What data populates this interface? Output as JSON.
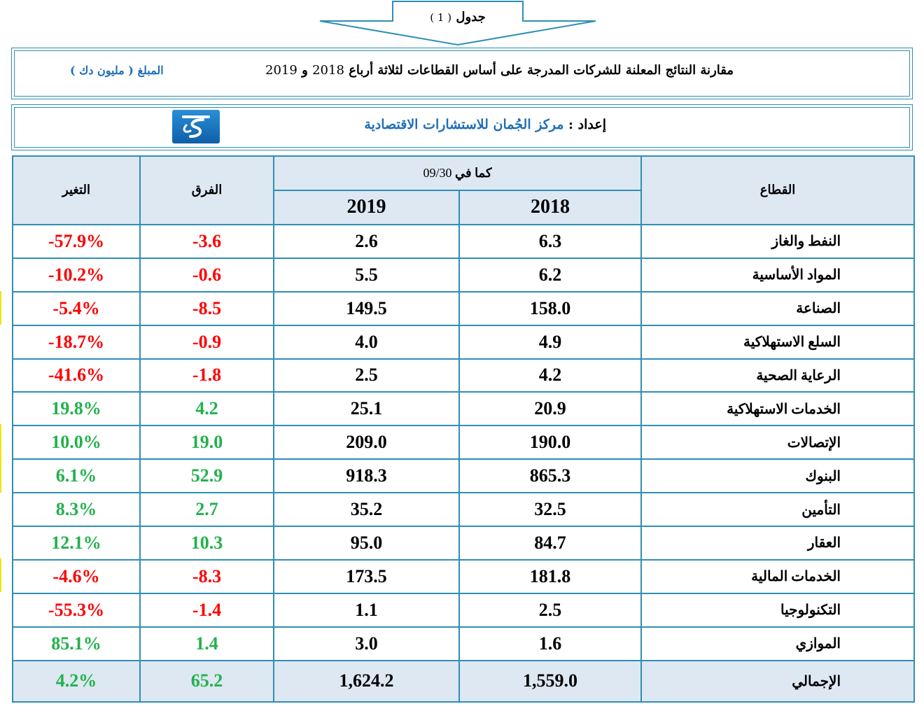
{
  "caption": {
    "word": "جدول",
    "number": "( 1 )"
  },
  "header": {
    "title_main": "مقارنة النتائج المعلنة للشركات المدرجة على أساس القطاعات لثلاثة أرباع",
    "title_year_1": "2018",
    "title_and": "و",
    "title_year_2": "2019",
    "amount_label": "المبلغ",
    "amount_unit": "( مليون دك )"
  },
  "preparer": {
    "label": "إعداد :",
    "name": "مركز الجُمان للاستشارات الاقتصادية"
  },
  "table": {
    "col_sector": "القطاع",
    "col_asof": "كما في",
    "col_asof_date": "09/30",
    "col_2018": "2018",
    "col_2019": "2019",
    "col_diff": "الفرق",
    "col_change": "التغير",
    "rows": [
      {
        "sector": "النفط والغاز",
        "v2018": "6.3",
        "v2019": "2.6",
        "diff": "-3.6",
        "change": "-57.9%"
      },
      {
        "sector": "المواد الأساسية",
        "v2018": "6.2",
        "v2019": "5.5",
        "diff": "-0.6",
        "change": "-10.2%"
      },
      {
        "sector": "الصناعة",
        "v2018": "158.0",
        "v2019": "149.5",
        "diff": "-8.5",
        "change": "-5.4%"
      },
      {
        "sector": "السلع الاستهلاكية",
        "v2018": "4.9",
        "v2019": "4.0",
        "diff": "-0.9",
        "change": "-18.7%"
      },
      {
        "sector": "الرعاية الصحية",
        "v2018": "4.2",
        "v2019": "2.5",
        "diff": "-1.8",
        "change": "-41.6%"
      },
      {
        "sector": "الخدمات الاستهلاكية",
        "v2018": "20.9",
        "v2019": "25.1",
        "diff": "4.2",
        "change": "19.8%"
      },
      {
        "sector": "الإتصالات",
        "v2018": "190.0",
        "v2019": "209.0",
        "diff": "19.0",
        "change": "10.0%"
      },
      {
        "sector": "البنوك",
        "v2018": "865.3",
        "v2019": "918.3",
        "diff": "52.9",
        "change": "6.1%"
      },
      {
        "sector": "التأمين",
        "v2018": "32.5",
        "v2019": "35.2",
        "diff": "2.7",
        "change": "8.3%"
      },
      {
        "sector": "العقار",
        "v2018": "84.7",
        "v2019": "95.0",
        "diff": "10.3",
        "change": "12.1%"
      },
      {
        "sector": "الخدمات المالية",
        "v2018": "181.8",
        "v2019": "173.5",
        "diff": "-8.3",
        "change": "-4.6%"
      },
      {
        "sector": "التكنولوجيا",
        "v2018": "2.5",
        "v2019": "1.1",
        "diff": "-1.4",
        "change": "-55.3%"
      },
      {
        "sector": "الموازي",
        "v2018": "1.6",
        "v2019": "3.0",
        "diff": "1.4",
        "change": "85.1%"
      }
    ],
    "total": {
      "sector": "الإجمالي",
      "v2018": "1,559.0",
      "v2019": "1,624.2",
      "diff": "65.2",
      "change": "4.2%"
    }
  },
  "colors": {
    "border": "#2e8fb5",
    "header_bg": "#dde8f2",
    "negative": "#ff0000",
    "positive": "#22b14c",
    "accent_text": "#1f6fb5"
  },
  "icons": {
    "logo": "aljuman-logo-icon"
  }
}
